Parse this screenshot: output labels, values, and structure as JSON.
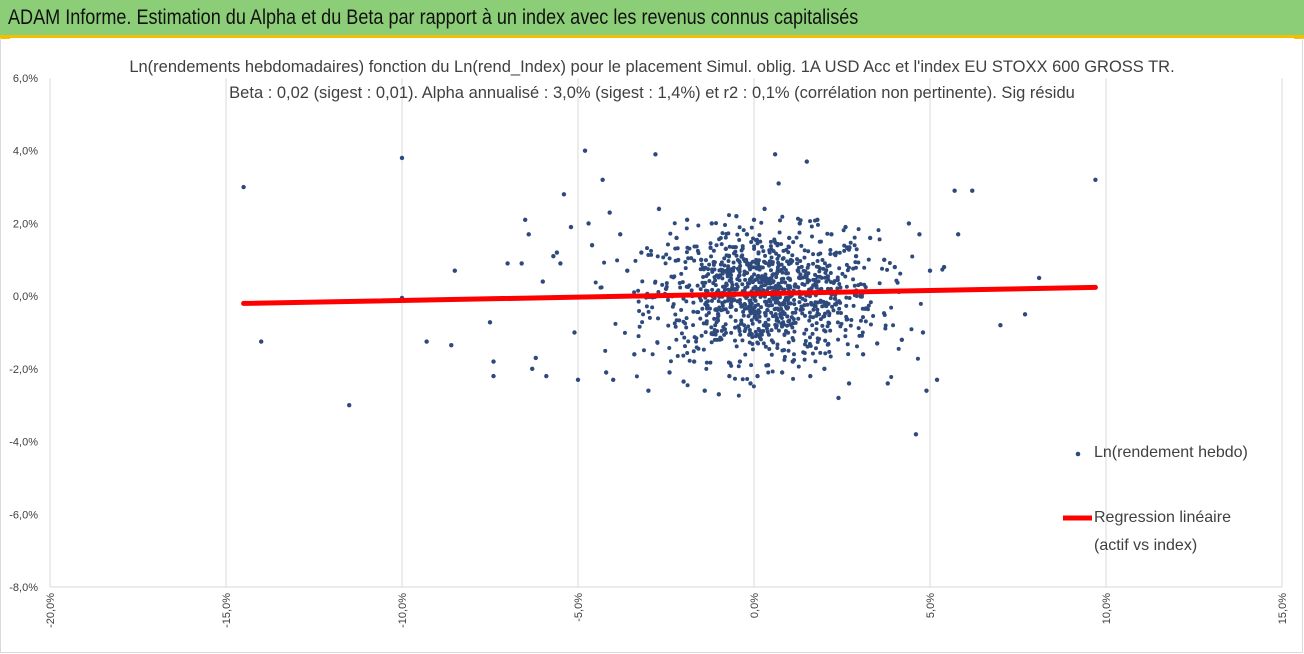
{
  "banner": {
    "title": "ADAM Informe. Estimation du Alpha et du Beta par rapport à un index avec les revenus connus capitalisés"
  },
  "colors": {
    "banner_bg": "#8ccd77",
    "banner_accent": "#f2c000",
    "scatter": "#2e4a7d",
    "regression": "#ff0000",
    "grid": "#d9d9d9"
  },
  "chart_data": {
    "type": "scatter",
    "title": "Ln(rendements hebdomadaires) fonction du Ln(rend_Index) pour le placement Simul. oblig. 1A USD Acc et l'index EU STOXX 600 GROSS TR.",
    "subtitle": "Beta : 0,02 (sigest : 0,01). Alpha annualisé : 3,0% (sigest : 1,4%) et r2 : 0,1% (corrélation non pertinente). Sig résidu",
    "xlim": [
      -0.2,
      0.15
    ],
    "ylim": [
      -0.08,
      0.06
    ],
    "x_ticks": [
      "-20,0%",
      "-15,0%",
      "-10,0%",
      "-5,0%",
      "0,0%",
      "5,0%",
      "10,0%",
      "15,0%"
    ],
    "y_ticks": [
      "6,0%",
      "4,0%",
      "2,0%",
      "0,0%",
      "-2,0%",
      "-4,0%",
      "-6,0%",
      "-8,0%"
    ],
    "grid": "vertical",
    "legend_position": "right",
    "series": [
      {
        "name": "Ln(rendement hebdo)",
        "kind": "scatter",
        "points": [
          [
            -0.145,
            0.03
          ],
          [
            -0.14,
            -0.0125
          ],
          [
            -0.115,
            -0.03
          ],
          [
            -0.1,
            0.038
          ],
          [
            -0.1,
            -0.0005
          ],
          [
            -0.093,
            -0.0125
          ],
          [
            -0.085,
            0.007
          ],
          [
            -0.086,
            -0.0135
          ],
          [
            -0.075,
            -0.0072
          ],
          [
            -0.074,
            -0.018
          ],
          [
            -0.074,
            -0.022
          ],
          [
            -0.07,
            0.009
          ],
          [
            -0.066,
            0.009
          ],
          [
            -0.065,
            0.021
          ],
          [
            -0.064,
            0.017
          ],
          [
            -0.063,
            -0.02
          ],
          [
            -0.062,
            -0.017
          ],
          [
            -0.06,
            0.004
          ],
          [
            -0.059,
            -0.022
          ],
          [
            -0.057,
            0.011
          ],
          [
            -0.056,
            0.012
          ],
          [
            -0.055,
            0.009
          ],
          [
            -0.054,
            0.028
          ],
          [
            -0.052,
            0.019
          ],
          [
            -0.051,
            -0.01
          ],
          [
            -0.05,
            -0.023
          ],
          [
            -0.048,
            0.04
          ],
          [
            -0.047,
            0.02
          ],
          [
            -0.046,
            0.014
          ],
          [
            -0.043,
            0.032
          ],
          [
            -0.042,
            -0.021
          ],
          [
            -0.041,
            0.023
          ],
          [
            -0.04,
            -0.023
          ],
          [
            -0.038,
            0.017
          ],
          [
            -0.036,
            0.007
          ],
          [
            -0.034,
            -0.016
          ],
          [
            -0.032,
            0.012
          ],
          [
            -0.03,
            -0.026
          ],
          [
            -0.028,
            0.039
          ],
          [
            -0.027,
            0.024
          ],
          [
            -0.025,
            0.002
          ],
          [
            -0.024,
            -0.021
          ],
          [
            -0.022,
            0.016
          ],
          [
            -0.02,
            -0.0235
          ],
          [
            -0.019,
            0.021
          ],
          [
            -0.017,
            -0.018
          ],
          [
            -0.015,
            0.01
          ],
          [
            -0.014,
            -0.026
          ],
          [
            -0.012,
            0.02
          ],
          [
            -0.01,
            -0.027
          ],
          [
            -0.008,
            0.013
          ],
          [
            -0.007,
            -0.022
          ],
          [
            -0.005,
            0.022
          ],
          [
            -0.004,
            -0.018
          ],
          [
            -0.002,
            0.017
          ],
          [
            -0.001,
            -0.024
          ],
          [
            0.0,
            0.021
          ],
          [
            0.001,
            -0.022
          ],
          [
            0.003,
            0.024
          ],
          [
            0.004,
            -0.019
          ],
          [
            0.006,
            0.039
          ],
          [
            0.007,
            0.031
          ],
          [
            0.008,
            -0.021
          ],
          [
            0.01,
            0.016
          ],
          [
            0.011,
            -0.018
          ],
          [
            0.013,
            0.02
          ],
          [
            0.015,
            0.037
          ],
          [
            0.016,
            -0.022
          ],
          [
            0.018,
            0.021
          ],
          [
            0.02,
            -0.02
          ],
          [
            0.022,
            0.017
          ],
          [
            0.024,
            -0.028
          ],
          [
            0.026,
            0.019
          ],
          [
            0.027,
            -0.024
          ],
          [
            0.029,
            0.011
          ],
          [
            0.031,
            -0.016
          ],
          [
            0.033,
            0.016
          ],
          [
            0.035,
            -0.013
          ],
          [
            0.037,
            0.01
          ],
          [
            0.038,
            -0.024
          ],
          [
            0.04,
            0.008
          ],
          [
            0.042,
            -0.012
          ],
          [
            0.044,
            0.02
          ],
          [
            0.046,
            -0.038
          ],
          [
            0.047,
            0.017
          ],
          [
            0.048,
            -0.01
          ],
          [
            0.049,
            -0.026
          ],
          [
            0.05,
            0.007
          ],
          [
            0.052,
            -0.023
          ],
          [
            0.054,
            0.008
          ],
          [
            0.057,
            0.029
          ],
          [
            0.058,
            0.017
          ],
          [
            0.062,
            0.029
          ],
          [
            0.07,
            -0.008
          ],
          [
            0.077,
            -0.005
          ],
          [
            0.081,
            0.005
          ],
          [
            0.097,
            0.032
          ]
        ]
      },
      {
        "name": "Regression linéaire\n(actif vs index)",
        "kind": "line",
        "beta": 0.02,
        "x": [
          -0.145,
          0.097
        ],
        "y": [
          -0.002,
          0.0024
        ]
      }
    ]
  },
  "legend": {
    "scatter_label": "Ln(rendement hebdo)",
    "line_label_1": "Regression linéaire",
    "line_label_2": "(actif vs index)"
  }
}
